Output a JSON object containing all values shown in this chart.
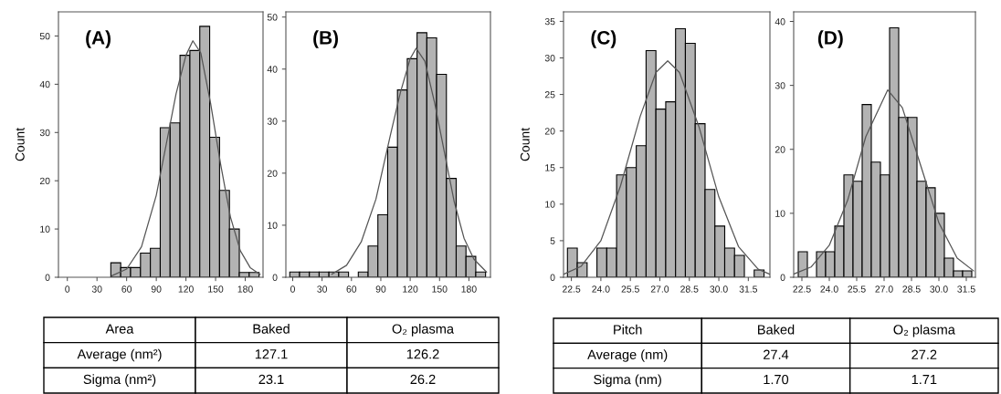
{
  "chart_data": [
    {
      "type": "histogram",
      "ylabel": "Count",
      "annotations": [
        "(A)"
      ],
      "xlim": [
        -9,
        198
      ],
      "ylim": [
        0,
        55
      ],
      "xticks": [
        0,
        30,
        60,
        90,
        120,
        150,
        180
      ],
      "yticks": [
        0,
        10,
        20,
        30,
        40,
        50
      ],
      "grid": false,
      "legend": false,
      "series": [
        {
          "type": "histogram",
          "color": "#b3b3b3",
          "bins": [
            44,
            54,
            64,
            74,
            84,
            94,
            104,
            114,
            124,
            134,
            144,
            154,
            164,
            174,
            184,
            194
          ],
          "values": [
            3,
            2,
            2,
            5,
            6,
            31,
            32,
            46,
            47,
            52,
            29,
            18,
            10,
            1,
            1
          ]
        },
        {
          "type": "line",
          "color": "#555555",
          "x": [
            45,
            60,
            75,
            90,
            100,
            110,
            120,
            127,
            135,
            145,
            155,
            165,
            175,
            185,
            195
          ],
          "values": [
            0.3,
            1.7,
            6.3,
            17,
            27.5,
            38,
            46,
            49,
            46.5,
            36,
            23.5,
            12.5,
            5.5,
            2,
            0.6
          ]
        }
      ]
    },
    {
      "type": "histogram",
      "annotations": [
        "(B)"
      ],
      "xlim": [
        -7,
        202
      ],
      "ylim": [
        0,
        51
      ],
      "xticks": [
        0,
        30,
        60,
        90,
        120,
        150,
        180
      ],
      "yticks": [
        0,
        10,
        20,
        30,
        40,
        50
      ],
      "grid": false,
      "legend": false,
      "series": [
        {
          "type": "histogram",
          "color": "#b3b3b3",
          "bins": [
            -3,
            7,
            17,
            27,
            37,
            47,
            57,
            67,
            77,
            87,
            97,
            107,
            117,
            127,
            137,
            147,
            157,
            167,
            177,
            187,
            197
          ],
          "values": [
            1,
            1,
            1,
            1,
            1,
            1,
            0,
            1,
            6,
            12,
            25,
            36,
            42,
            47,
            46,
            39,
            19,
            6,
            4,
            1
          ]
        },
        {
          "type": "line",
          "color": "#555555",
          "x": [
            40,
            55,
            70,
            85,
            100,
            110,
            120,
            126,
            135,
            145,
            155,
            165,
            175,
            185,
            198
          ],
          "values": [
            0.6,
            2.3,
            6.8,
            15,
            27.5,
            35.5,
            42,
            44,
            41.5,
            33.5,
            24,
            14.5,
            7.5,
            3.5,
            1
          ]
        }
      ]
    },
    {
      "type": "histogram",
      "ylabel": "Count",
      "annotations": [
        "(C)"
      ],
      "xlim": [
        22.1,
        32.6
      ],
      "ylim": [
        0,
        36.3
      ],
      "xticks": [
        22.5,
        {
          "value": 24,
          "label": "24.0"
        },
        25.5,
        {
          "value": 27,
          "label": "27.0"
        },
        28.5,
        {
          "value": 30,
          "label": "30.0"
        },
        31.5
      ],
      "yticks": [
        0,
        5,
        10,
        15,
        20,
        25,
        30,
        35
      ],
      "grid": false,
      "legend": false,
      "series": [
        {
          "type": "histogram",
          "color": "#b3b3b3",
          "bins": [
            22.3,
            22.8,
            23.3,
            23.8,
            24.3,
            24.8,
            25.3,
            25.8,
            26.3,
            26.8,
            27.3,
            27.8,
            28.3,
            28.8,
            29.3,
            29.8,
            30.3,
            30.8,
            31.3,
            31.8,
            32.3
          ],
          "values": [
            4,
            2,
            0,
            4,
            4,
            14,
            15,
            18,
            31,
            23,
            24,
            34,
            32,
            21,
            12,
            7,
            4,
            3,
            0,
            1
          ]
        },
        {
          "type": "line",
          "color": "#555555",
          "x": [
            22.1,
            23,
            24,
            25,
            26,
            26.8,
            27.4,
            28,
            29,
            30,
            31,
            32,
            32.6
          ],
          "values": [
            0.4,
            1.5,
            5,
            12.5,
            22,
            28,
            29.6,
            28,
            20.5,
            11,
            4.2,
            1.1,
            0.4
          ]
        }
      ]
    },
    {
      "type": "histogram",
      "annotations": [
        "(D)"
      ],
      "xlim": [
        22.05,
        32.0
      ],
      "ylim": [
        0,
        41.5
      ],
      "xticks": [
        22.5,
        {
          "value": 24,
          "label": "24.0"
        },
        25.5,
        {
          "value": 27,
          "label": "27.0"
        },
        28.5,
        {
          "value": 30,
          "label": "30.0"
        },
        31.5
      ],
      "yticks": [
        0,
        10,
        20,
        30,
        40
      ],
      "grid": false,
      "legend": false,
      "series": [
        {
          "type": "histogram",
          "color": "#b3b3b3",
          "bins": [
            22.3,
            22.8,
            23.3,
            23.8,
            24.3,
            24.8,
            25.3,
            25.8,
            26.3,
            26.8,
            27.3,
            27.8,
            28.3,
            28.8,
            29.3,
            29.8,
            30.3,
            30.8,
            31.3,
            31.8
          ],
          "values": [
            4,
            0,
            4,
            4,
            8,
            16,
            15,
            27,
            18,
            16,
            39,
            25,
            25,
            15,
            14,
            10,
            3,
            1,
            1
          ]
        },
        {
          "type": "line",
          "color": "#555555",
          "x": [
            22.05,
            23,
            24,
            25,
            26,
            27.2,
            28,
            29,
            30,
            31,
            31.9
          ],
          "values": [
            0.5,
            1.6,
            5,
            12,
            22,
            29.3,
            26.5,
            17.5,
            8.5,
            3,
            1
          ]
        }
      ]
    },
    {
      "type": "other",
      "title": "Area",
      "categories": [
        "Baked",
        "O₂ plasma"
      ],
      "y_categories": [
        "Average (nm²)",
        "Sigma (nm²)"
      ],
      "cell_labels": [
        [
          "127.1",
          "126.2"
        ],
        [
          "23.1",
          "26.2"
        ]
      ]
    },
    {
      "type": "other",
      "title": "Pitch",
      "categories": [
        "Baked",
        "O₂ plasma"
      ],
      "y_categories": [
        "Average (nm)",
        "Sigma (nm)"
      ],
      "cell_labels": [
        [
          "27.4",
          "27.2"
        ],
        [
          "1.70",
          "1.71"
        ]
      ]
    }
  ]
}
